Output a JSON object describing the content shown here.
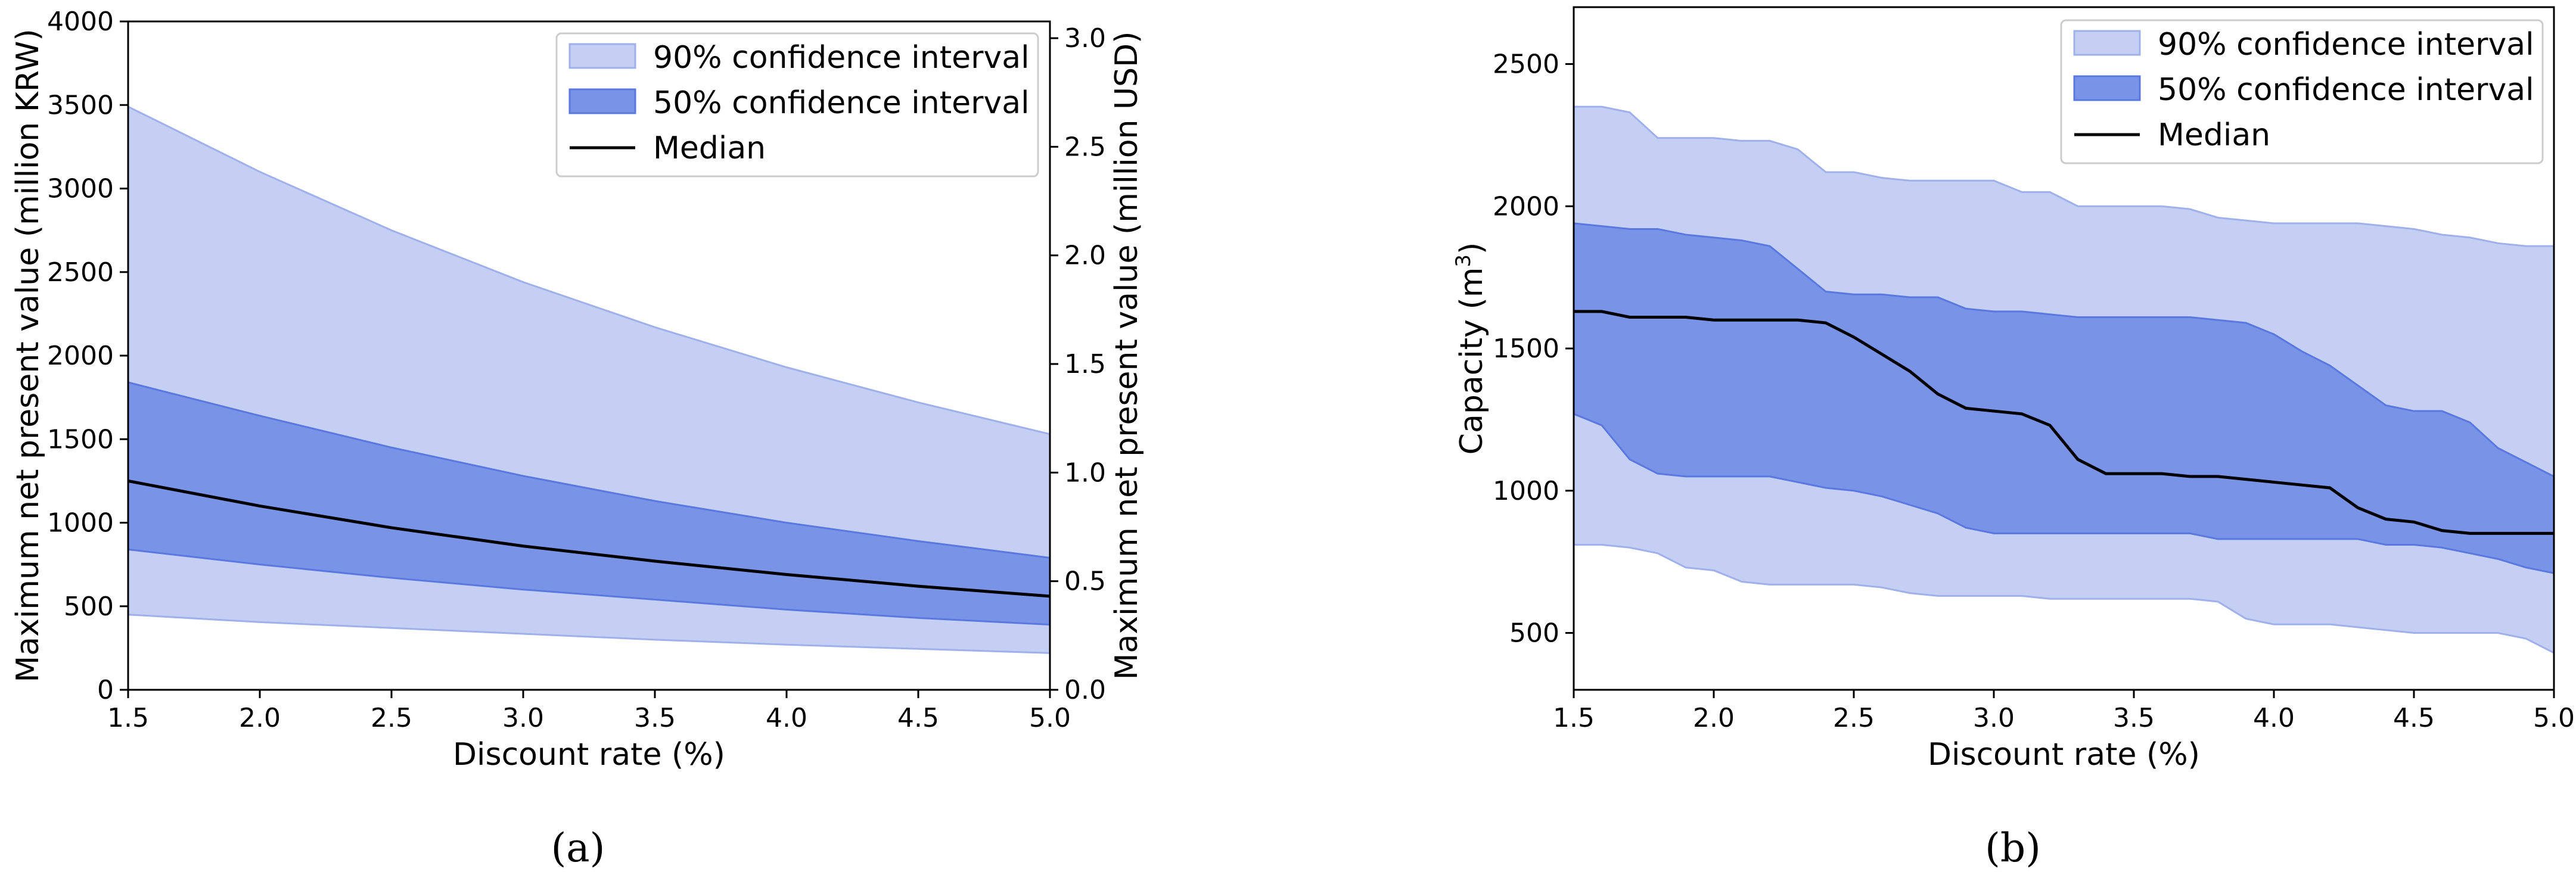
{
  "colors": {
    "ci90": "#c4cff3",
    "ci90_edge": "#9fb0ea",
    "ci50": "#7993e6",
    "ci50_edge": "#5a78df",
    "median": "#000000"
  },
  "chart_data": [
    {
      "type": "area",
      "panel": "(a)",
      "xlabel": "Discount rate (%)",
      "ylabel": "Maximum net present value (million KRW)",
      "ylabel_right": "Maximum net present value (million USD)",
      "xlim": [
        1.5,
        5.0
      ],
      "ylim": [
        0,
        4000
      ],
      "ylim_right": [
        0,
        3.077
      ],
      "xticks": [
        "1.5",
        "2.0",
        "2.5",
        "3.0",
        "3.5",
        "4.0",
        "4.5",
        "5.0"
      ],
      "xtick_values": [
        1.5,
        2.0,
        2.5,
        3.0,
        3.5,
        4.0,
        4.5,
        5.0
      ],
      "yticks": [
        "0",
        "500",
        "1000",
        "1500",
        "2000",
        "2500",
        "3000",
        "3500",
        "4000"
      ],
      "ytick_values": [
        0,
        500,
        1000,
        1500,
        2000,
        2500,
        3000,
        3500,
        4000
      ],
      "yticks_right": [
        "0.0",
        "0.5",
        "1.0",
        "1.5",
        "2.0",
        "2.5",
        "3.0"
      ],
      "ytick_values_right": [
        0,
        0.5,
        1.0,
        1.5,
        2.0,
        2.5,
        3.0
      ],
      "legend": [
        "90% confidence interval",
        "50% confidence interval",
        "Median"
      ],
      "legend_position": "top-right",
      "x": [
        1.5,
        2.0,
        2.5,
        3.0,
        3.5,
        4.0,
        4.5,
        5.0
      ],
      "ci90_upper": [
        3490,
        3100,
        2750,
        2440,
        2170,
        1930,
        1720,
        1530
      ],
      "ci90_lower": [
        450,
        405,
        370,
        335,
        300,
        270,
        245,
        220
      ],
      "ci50_upper": [
        1840,
        1640,
        1450,
        1280,
        1130,
        1000,
        890,
        790
      ],
      "ci50_lower": [
        840,
        750,
        670,
        600,
        540,
        480,
        430,
        390
      ],
      "median": [
        1250,
        1100,
        970,
        860,
        770,
        690,
        620,
        560
      ]
    },
    {
      "type": "area",
      "panel": "(b)",
      "xlabel": "Discount rate (%)",
      "ylabel_main": "Capacity (m",
      "ylabel_sup": "3",
      "ylabel_close": ")",
      "xlim": [
        1.5,
        5.0
      ],
      "ylim": [
        300,
        2700
      ],
      "xticks": [
        "1.5",
        "2.0",
        "2.5",
        "3.0",
        "3.5",
        "4.0",
        "4.5",
        "5.0"
      ],
      "xtick_values": [
        1.5,
        2.0,
        2.5,
        3.0,
        3.5,
        4.0,
        4.5,
        5.0
      ],
      "yticks": [
        "500",
        "1000",
        "1500",
        "2000",
        "2500"
      ],
      "ytick_values": [
        500,
        1000,
        1500,
        2000,
        2500
      ],
      "legend": [
        "90% confidence interval",
        "50% confidence interval",
        "Median"
      ],
      "legend_position": "top-right",
      "x": [
        1.5,
        1.6,
        1.7,
        1.8,
        1.9,
        2.0,
        2.1,
        2.2,
        2.3,
        2.4,
        2.5,
        2.6,
        2.7,
        2.8,
        2.9,
        3.0,
        3.1,
        3.2,
        3.3,
        3.4,
        3.5,
        3.6,
        3.7,
        3.8,
        3.9,
        4.0,
        4.1,
        4.2,
        4.3,
        4.4,
        4.5,
        4.6,
        4.7,
        4.8,
        4.9,
        5.0
      ],
      "ci90_upper": [
        2350,
        2350,
        2330,
        2240,
        2240,
        2240,
        2230,
        2230,
        2200,
        2120,
        2120,
        2100,
        2090,
        2090,
        2090,
        2090,
        2050,
        2050,
        2000,
        2000,
        2000,
        2000,
        1990,
        1960,
        1950,
        1940,
        1940,
        1940,
        1940,
        1930,
        1920,
        1900,
        1890,
        1870,
        1860,
        1860
      ],
      "ci90_lower": [
        810,
        810,
        800,
        780,
        730,
        720,
        680,
        670,
        670,
        670,
        670,
        660,
        640,
        630,
        630,
        630,
        630,
        620,
        620,
        620,
        620,
        620,
        620,
        610,
        550,
        530,
        530,
        530,
        520,
        510,
        500,
        500,
        500,
        500,
        480,
        430
      ],
      "ci50_upper": [
        1940,
        1930,
        1920,
        1920,
        1900,
        1890,
        1880,
        1860,
        1780,
        1700,
        1690,
        1690,
        1680,
        1680,
        1640,
        1630,
        1630,
        1620,
        1610,
        1610,
        1610,
        1610,
        1610,
        1600,
        1590,
        1550,
        1490,
        1440,
        1370,
        1300,
        1280,
        1280,
        1240,
        1150,
        1100,
        1050
      ],
      "ci50_lower": [
        1270,
        1230,
        1110,
        1060,
        1050,
        1050,
        1050,
        1050,
        1030,
        1010,
        1000,
        980,
        950,
        920,
        870,
        850,
        850,
        850,
        850,
        850,
        850,
        850,
        850,
        830,
        830,
        830,
        830,
        830,
        830,
        810,
        810,
        800,
        780,
        760,
        730,
        710
      ],
      "median": [
        1630,
        1630,
        1610,
        1610,
        1610,
        1600,
        1600,
        1600,
        1600,
        1590,
        1540,
        1480,
        1420,
        1340,
        1290,
        1280,
        1270,
        1230,
        1110,
        1060,
        1060,
        1060,
        1050,
        1050,
        1040,
        1030,
        1020,
        1010,
        940,
        900,
        890,
        860,
        850,
        850,
        850,
        850
      ]
    }
  ],
  "captions": [
    "(a)",
    "(b)"
  ]
}
